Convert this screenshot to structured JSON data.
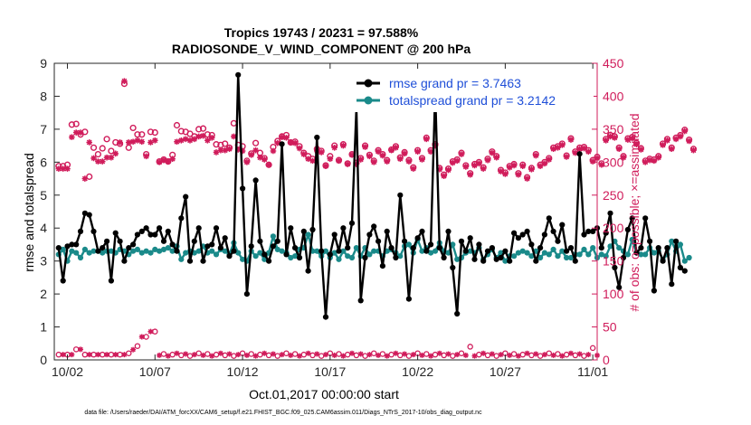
{
  "chart_data": {
    "type": "line",
    "title": "Tropics 19743 / 20231 = 97.588%",
    "subtitle": "RADIOSONDE_V_WIND_COMPONENT @ 200 hPa",
    "xlabel": "Oct.01,2017 00:00:00 start",
    "ylabel_left": "rmse and totalspread",
    "ylabel_right": "# of obs: o=possible; ×=assimilated",
    "footnote": "data file: /Users/raeder/DAI/ATM_forcXX/CAM6_setup/f.e21.FHIST_BGC.f09_025.CAM6assim.011/Diags_NTrS_2017-10/obs_diag_output.nc",
    "x_tick_labels": [
      "10/02",
      "10/07",
      "10/12",
      "10/17",
      "10/22",
      "10/27",
      "11/01"
    ],
    "x_tick_values": [
      1,
      6,
      11,
      16,
      21,
      26,
      31
    ],
    "xlim": [
      0.25,
      31.25
    ],
    "ylim_left": [
      0,
      9
    ],
    "y_left_ticks": [
      0,
      1,
      2,
      3,
      4,
      5,
      6,
      7,
      8,
      9
    ],
    "ylim_right": [
      0,
      450
    ],
    "y_right_ticks": [
      0,
      50,
      100,
      150,
      200,
      250,
      300,
      350,
      400,
      450
    ],
    "colors": {
      "rmse": "#000000",
      "spread": "#1a8a8a",
      "obs": "#d01c5b",
      "legend_text": "#1f4fd8"
    },
    "series": [
      {
        "name": "rmse grand pr = 3.7463",
        "axis": "left",
        "x_start": 0.5,
        "x_step": 0.25,
        "values": [
          3.4,
          2.4,
          3.45,
          3.5,
          3.5,
          3.9,
          4.45,
          4.4,
          3.9,
          3.3,
          3.4,
          3.6,
          2.4,
          3.85,
          3.6,
          3.0,
          3.4,
          3.5,
          3.8,
          3.9,
          4.0,
          3.8,
          3.8,
          4.0,
          3.6,
          3.9,
          3.5,
          3.3,
          4.3,
          4.95,
          3.0,
          3.6,
          4.0,
          3.0,
          3.45,
          3.5,
          4.0,
          3.4,
          3.7,
          3.15,
          3.3,
          8.65,
          5.2,
          2.0,
          3.45,
          5.45,
          3.6,
          3.2,
          3.0,
          3.45,
          3.6,
          6.55,
          3.2,
          4.0,
          3.4,
          3.1,
          3.9,
          2.7,
          3.95,
          6.75,
          3.3,
          1.3,
          3.2,
          3.8,
          3.3,
          4.0,
          3.4,
          4.15,
          7.65,
          1.8,
          3.1,
          3.8,
          4.05,
          3.6,
          2.85,
          3.9,
          3.4,
          3.1,
          5.0,
          3.6,
          1.85,
          3.4,
          3.7,
          3.9,
          3.3,
          3.5,
          8.15,
          3.4,
          3.1,
          3.9,
          2.8,
          1.4,
          3.6,
          3.3,
          3.7,
          3.05,
          3.5,
          3.0,
          3.3,
          3.4,
          3.05,
          3.1,
          3.3,
          3.0,
          3.85,
          3.7,
          3.8,
          3.9,
          3.5,
          3.0,
          3.4,
          3.8,
          4.3,
          3.9,
          3.6,
          4.1,
          3.3,
          3.4,
          3.0,
          6.25,
          3.8,
          3.9,
          3.9,
          4.0,
          3.4,
          3.85,
          4.45,
          2.8,
          2.2,
          3.1,
          3.95,
          4.3,
          3.25,
          3.4,
          4.3,
          3.6,
          2.1,
          3.4,
          3.0,
          3.4,
          2.3,
          3.6,
          2.8,
          2.7
        ]
      },
      {
        "name": "totalspread grand pr = 3.2142",
        "axis": "left",
        "x_start": 0.5,
        "x_step": 0.25,
        "values": [
          3.2,
          3.35,
          3.0,
          3.3,
          3.25,
          3.1,
          3.35,
          3.25,
          3.3,
          3.3,
          3.25,
          3.3,
          3.3,
          3.25,
          3.35,
          3.3,
          3.2,
          3.3,
          3.35,
          3.25,
          3.3,
          3.25,
          3.35,
          3.3,
          3.35,
          3.4,
          3.3,
          3.45,
          3.05,
          3.25,
          3.3,
          3.25,
          3.3,
          3.45,
          3.25,
          3.3,
          3.2,
          3.35,
          3.3,
          3.2,
          3.55,
          3.25,
          3.05,
          3.0,
          3.3,
          3.15,
          3.25,
          3.05,
          3.25,
          3.75,
          3.35,
          3.3,
          3.25,
          3.1,
          3.15,
          3.35,
          3.4,
          3.8,
          3.3,
          3.3,
          3.15,
          3.3,
          3.1,
          3.25,
          3.05,
          3.3,
          3.15,
          3.1,
          3.4,
          3.15,
          3.4,
          3.2,
          3.3,
          3.3,
          3.15,
          3.3,
          3.35,
          3.25,
          3.15,
          3.45,
          3.5,
          3.25,
          3.65,
          3.3,
          3.4,
          3.25,
          3.3,
          3.55,
          3.3,
          3.25,
          3.5,
          3.05,
          3.1,
          3.25,
          3.3,
          3.25,
          3.4,
          3.05,
          3.2,
          3.35,
          3.1,
          3.25,
          3.0,
          3.15,
          3.15,
          3.25,
          3.3,
          3.25,
          3.15,
          3.3,
          3.1,
          3.25,
          3.2,
          3.35,
          3.15,
          3.3,
          3.1,
          3.1,
          3.2,
          3.2,
          3.35,
          3.2,
          3.4,
          3.1,
          3.2,
          3.15,
          3.45,
          3.6,
          3.4,
          3.3,
          3.2,
          3.65,
          3.25,
          3.2,
          3.2,
          3.4,
          3.25,
          3.3,
          3.05,
          3.2,
          3.6,
          3.3,
          3.5,
          3.0,
          3.1
        ]
      },
      {
        "name": "obs possible",
        "axis": "right",
        "x_start": 0.5,
        "x_step": 0.25,
        "values": [
          294,
          294,
          296,
          357,
          358,
          342,
          346,
          278,
          322,
          312,
          321,
          335,
          317,
          330,
          328,
          419,
          322,
          352,
          342,
          342,
          312,
          346,
          345,
          301,
          304,
          301,
          311,
          356,
          347,
          346,
          343,
          339,
          350,
          351,
          342,
          341,
          327,
          326,
          328,
          322,
          359,
          326,
          324,
          302,
          313,
          329,
          314,
          306,
          296,
          323,
          332,
          339,
          341,
          330,
          331,
          324,
          314,
          309,
          305,
          320,
          317,
          295,
          309,
          325,
          303,
          327,
          298,
          312,
          299,
          306,
          325,
          311,
          302,
          318,
          312,
          303,
          319,
          324,
          307,
          315,
          303,
          292,
          318,
          306,
          337,
          318,
          327,
          291,
          281,
          290,
          301,
          304,
          314,
          295,
          283,
          297,
          300,
          292,
          305,
          316,
          309,
          288,
          284,
          294,
          297,
          283,
          296,
          277,
          291,
          312,
          296,
          300,
          306,
          322,
          324,
          328,
          310,
          336,
          316,
          322,
          323,
          318,
          303,
          308,
          298,
          335,
          341,
          339,
          322,
          309,
          336,
          338,
          329,
          321,
          302,
          305,
          304,
          309,
          328,
          335,
          322,
          337,
          341,
          349,
          334,
          320
        ]
      },
      {
        "name": "obs assimilated",
        "axis": "right",
        "x_start": 0.5,
        "x_step": 0.25,
        "values": [
          290,
          290,
          290,
          338,
          345,
          345,
          275,
          330,
          306,
          301,
          301,
          307,
          307,
          313,
          330,
          423,
          330,
          331,
          333,
          331,
          309,
          330,
          333,
          300,
          303,
          301,
          305,
          331,
          333,
          335,
          333,
          335,
          339,
          340,
          333,
          337,
          315,
          318,
          318,
          320,
          339,
          319,
          317,
          300,
          311,
          318,
          307,
          304,
          296,
          317,
          329,
          338,
          337,
          330,
          329,
          321,
          312,
          305,
          302,
          317,
          315,
          294,
          305,
          322,
          302,
          325,
          297,
          311,
          297,
          304,
          323,
          309,
          300,
          316,
          310,
          301,
          318,
          322,
          305,
          313,
          301,
          290,
          316,
          304,
          335,
          316,
          325,
          289,
          279,
          288,
          299,
          302,
          312,
          293,
          281,
          295,
          298,
          290,
          303,
          314,
          307,
          286,
          282,
          292,
          295,
          281,
          294,
          275,
          289,
          310,
          294,
          298,
          304,
          320,
          322,
          326,
          308,
          334,
          314,
          320,
          321,
          316,
          301,
          306,
          296,
          333,
          339,
          337,
          320,
          307,
          334,
          336,
          327,
          319,
          300,
          303,
          302,
          307,
          326,
          333,
          320,
          335,
          339,
          347,
          332,
          318
        ]
      }
    ]
  }
}
